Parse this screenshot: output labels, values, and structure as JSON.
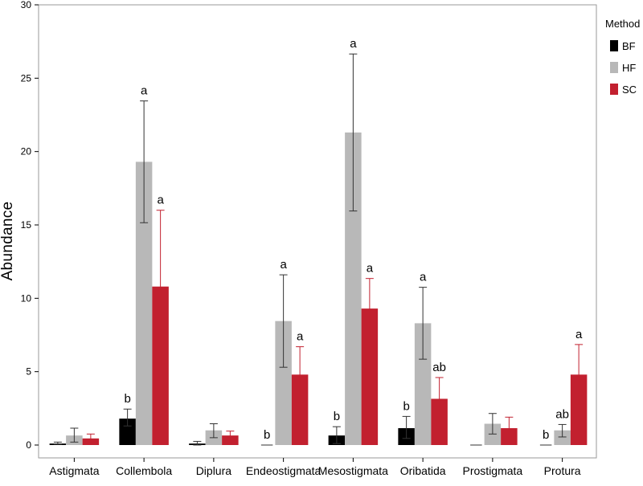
{
  "chart_data": {
    "type": "bar",
    "ylabel": "Abundance",
    "ylim": [
      0,
      30
    ],
    "yticks": [
      0,
      5,
      10,
      15,
      20,
      25,
      30
    ],
    "categories": [
      "Astigmata",
      "Collembola",
      "Diplura",
      "Endeostigmata",
      "Mesostigmata",
      "Oribatida",
      "Prostigmata",
      "Protura"
    ],
    "legend": {
      "title": "Method",
      "position": "right"
    },
    "series": [
      {
        "name": "BF",
        "color": "#000000",
        "values": [
          0.1,
          1.8,
          0.1,
          0.0,
          0.65,
          1.15,
          0.0,
          0.0
        ],
        "err_low": [
          0.05,
          1.3,
          0.0,
          0.0,
          0.1,
          0.45,
          0.0,
          0.0
        ],
        "err_high": [
          0.2,
          2.45,
          0.25,
          0.0,
          1.25,
          1.95,
          0.0,
          0.0
        ],
        "sig": [
          "",
          "b",
          "",
          "b",
          "b",
          "b",
          "",
          "b"
        ]
      },
      {
        "name": "HF",
        "color": "#b8b8b8",
        "values": [
          0.65,
          19.3,
          1.0,
          8.45,
          21.3,
          8.3,
          1.45,
          1.0
        ],
        "err_low": [
          0.2,
          15.15,
          0.5,
          5.3,
          15.95,
          5.85,
          0.75,
          0.55
        ],
        "err_high": [
          1.15,
          23.45,
          1.45,
          11.6,
          26.65,
          10.75,
          2.15,
          1.4
        ],
        "sig": [
          "",
          "a",
          "",
          "a",
          "a",
          "a",
          "",
          "ab"
        ]
      },
      {
        "name": "SC",
        "color": "#c2202f",
        "values": [
          0.45,
          10.8,
          0.65,
          4.8,
          9.3,
          3.15,
          1.15,
          4.8
        ],
        "err_low": [
          0.15,
          5.55,
          0.35,
          2.9,
          7.25,
          1.65,
          0.4,
          2.8
        ],
        "err_high": [
          0.75,
          16.0,
          0.95,
          6.7,
          11.35,
          4.6,
          1.9,
          6.85
        ],
        "sig": [
          "",
          "a",
          "",
          "a",
          "a",
          "ab",
          "",
          "a"
        ]
      }
    ]
  }
}
